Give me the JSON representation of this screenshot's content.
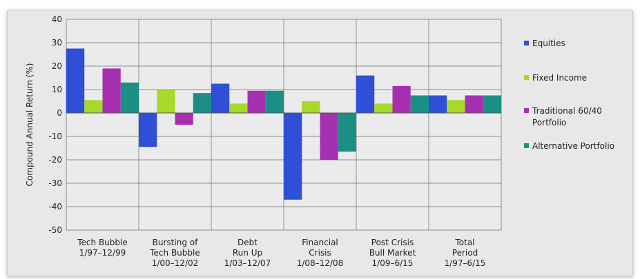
{
  "chart_data": {
    "type": "bar",
    "title": "",
    "xlabel": "",
    "ylabel": "Compound Annual Return (%)",
    "ylim": [
      -50,
      40
    ],
    "yticks": [
      40,
      30,
      20,
      10,
      0,
      -10,
      -20,
      -30,
      -40,
      -50
    ],
    "grid": true,
    "legend_position": "right",
    "categories": [
      [
        "Tech Bubble",
        "1/97–12/99"
      ],
      [
        "Bursting of",
        "Tech Bubble",
        "1/00–12/02"
      ],
      [
        "Debt",
        "Run Up",
        "1/03–12/07"
      ],
      [
        "Financial",
        "Crisis",
        "1/08–12/08"
      ],
      [
        "Post Crisis",
        "Bull Market",
        "1/09–6/15"
      ],
      [
        "Total",
        "Period",
        "1/97–6/15"
      ]
    ],
    "series": [
      {
        "name": "Equities",
        "color": "#2f4fd6",
        "values": [
          27.5,
          -14.5,
          12.5,
          -37,
          16,
          7.5
        ]
      },
      {
        "name": "Fixed Income",
        "color": "#a7d82a",
        "values": [
          5.5,
          10,
          4,
          5,
          4,
          5.5
        ]
      },
      {
        "name": "Traditional 60/40 Portfolio",
        "legend_lines": [
          "Traditional 60/40",
          "Portfolio"
        ],
        "color": "#a62fb0",
        "values": [
          19,
          -5,
          9.5,
          -20,
          11.5,
          7.5
        ]
      },
      {
        "name": "Alternative Portfolio",
        "color": "#1a8f86",
        "values": [
          13,
          8.5,
          9.5,
          -16.5,
          7.5,
          7.5
        ]
      }
    ]
  }
}
